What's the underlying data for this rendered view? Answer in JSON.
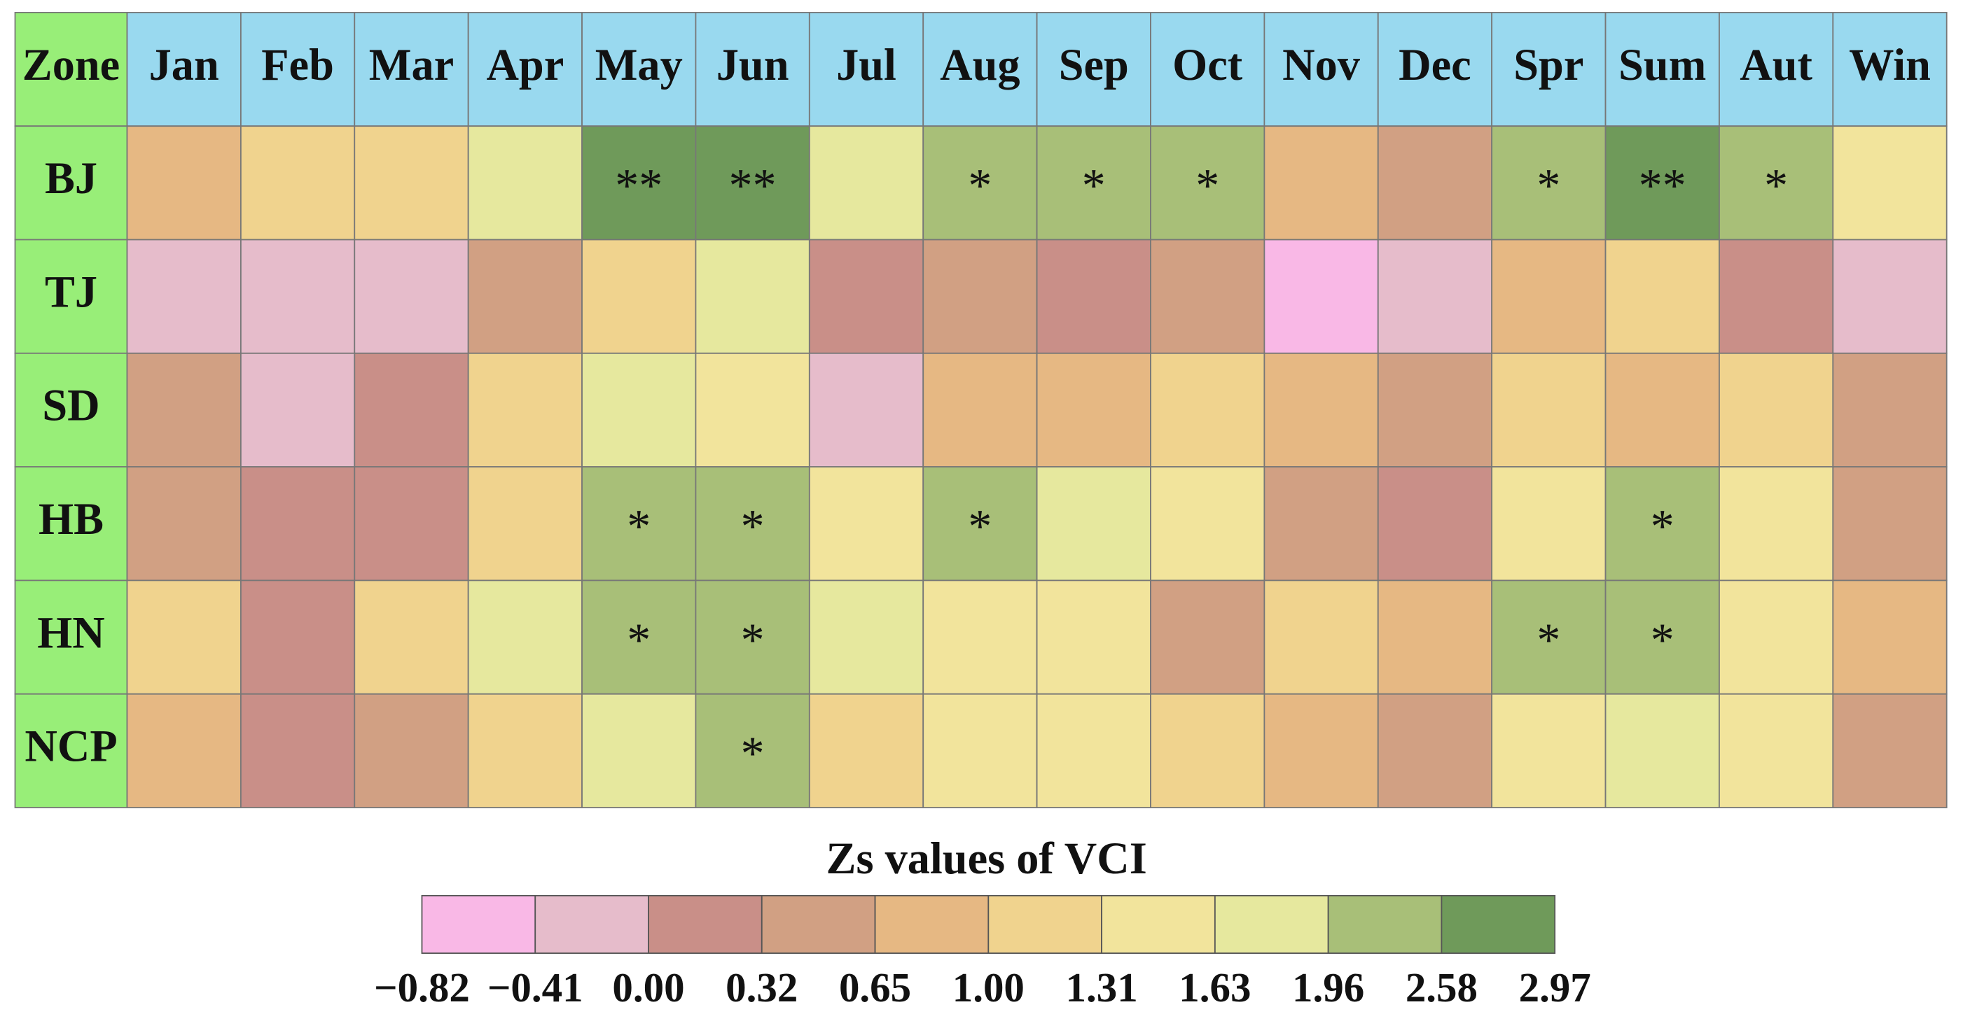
{
  "chart_data": {
    "type": "heatmap",
    "corner": "Zone",
    "categories": [
      "Jan",
      "Feb",
      "Mar",
      "Apr",
      "May",
      "Jun",
      "Jul",
      "Aug",
      "Sep",
      "Oct",
      "Nov",
      "Dec",
      "Spr",
      "Sum",
      "Aut",
      "Win"
    ],
    "header_color": "#99d9ef",
    "row_header_color": "#98ee78",
    "rows": [
      {
        "name": "BJ",
        "colors": [
          "#e6b883",
          "#f0d38e",
          "#f0d38e",
          "#e6e89e",
          "#6f9a5a",
          "#6f9a5a",
          "#e6e89e",
          "#a8bf78",
          "#a8bf78",
          "#a8bf78",
          "#e6b883",
          "#d1a083",
          "#a8bf78",
          "#6f9a5a",
          "#a8bf78",
          "#f2e49c"
        ],
        "marks": [
          null,
          null,
          null,
          null,
          "**",
          "**",
          null,
          "*",
          "*",
          "*",
          null,
          null,
          "*",
          "**",
          "*",
          null
        ]
      },
      {
        "name": "TJ",
        "colors": [
          "#e6bccb",
          "#e6bccb",
          "#e6bccb",
          "#d1a083",
          "#f0d38e",
          "#e6e89e",
          "#c98f88",
          "#d1a083",
          "#c98f88",
          "#d1a083",
          "#f9b8e6",
          "#e6bccb",
          "#e6b883",
          "#f0d38e",
          "#c98f88",
          "#e6bccb"
        ],
        "marks": [
          null,
          null,
          null,
          null,
          null,
          null,
          null,
          null,
          null,
          null,
          null,
          null,
          null,
          null,
          null,
          null
        ]
      },
      {
        "name": "SD",
        "colors": [
          "#d1a083",
          "#e6bccb",
          "#c98f88",
          "#f0d38e",
          "#e6e89e",
          "#f2e49c",
          "#e6bccb",
          "#e6b883",
          "#e6b883",
          "#f0d38e",
          "#e6b883",
          "#d1a083",
          "#f0d38e",
          "#e6b883",
          "#f0d38e",
          "#d1a083"
        ],
        "marks": [
          null,
          null,
          null,
          null,
          null,
          null,
          null,
          null,
          null,
          null,
          null,
          null,
          null,
          null,
          null,
          null
        ]
      },
      {
        "name": "HB",
        "colors": [
          "#d1a083",
          "#c98f88",
          "#c98f88",
          "#f0d38e",
          "#a8bf78",
          "#a8bf78",
          "#f2e49c",
          "#a8bf78",
          "#e6e89e",
          "#f2e49c",
          "#d1a083",
          "#c98f88",
          "#f2e49c",
          "#a8bf78",
          "#f2e49c",
          "#d1a083"
        ],
        "marks": [
          null,
          null,
          null,
          null,
          "*",
          "*",
          null,
          "*",
          null,
          null,
          null,
          null,
          null,
          "*",
          null,
          null
        ]
      },
      {
        "name": "HN",
        "colors": [
          "#f0d38e",
          "#c98f88",
          "#f0d38e",
          "#e6e89e",
          "#a8bf78",
          "#a8bf78",
          "#e6e89e",
          "#f2e49c",
          "#f2e49c",
          "#d1a083",
          "#f0d38e",
          "#e6b883",
          "#a8bf78",
          "#a8bf78",
          "#f2e49c",
          "#e6b883"
        ],
        "marks": [
          null,
          null,
          null,
          null,
          "*",
          "*",
          null,
          null,
          null,
          null,
          null,
          null,
          "*",
          "*",
          null,
          null
        ]
      },
      {
        "name": "NCP",
        "colors": [
          "#e6b883",
          "#c98f88",
          "#d1a083",
          "#f0d38e",
          "#e6e89e",
          "#a8bf78",
          "#f0d38e",
          "#f2e49c",
          "#f2e49c",
          "#f0d38e",
          "#e6b883",
          "#d1a083",
          "#f2e49c",
          "#e6e89e",
          "#f2e49c",
          "#d1a083"
        ],
        "marks": [
          null,
          null,
          null,
          null,
          null,
          "*",
          null,
          null,
          null,
          null,
          null,
          null,
          null,
          null,
          null,
          null
        ]
      }
    ],
    "legend": {
      "title": "Zs values of VCI",
      "colors": [
        "#f9b8e6",
        "#e6bccb",
        "#c98f88",
        "#d1a083",
        "#e6b883",
        "#f0d38e",
        "#f2e49c",
        "#e6e89e",
        "#a8bf78",
        "#6f9a5a"
      ],
      "ticks": [
        {
          "value": -0.82,
          "label": "−0.82"
        },
        {
          "value": -0.41,
          "label": "−0.41"
        },
        {
          "value": 0,
          "label": "0.00"
        },
        0.32,
        0.65,
        {
          "value": 1,
          "label": "1.00"
        },
        1.31,
        1.63,
        1.96,
        2.58,
        2.97
      ]
    }
  }
}
